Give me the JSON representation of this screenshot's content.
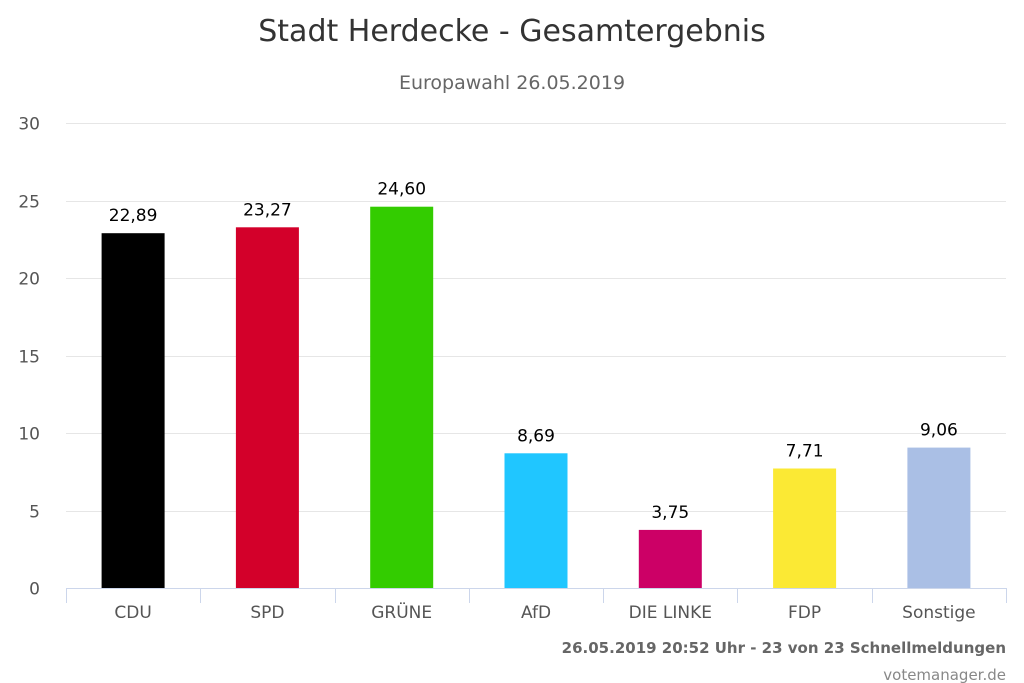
{
  "chart_data": {
    "type": "bar",
    "title": "Stadt Herdecke - Gesamtergebnis",
    "subtitle": "Europawahl 26.05.2019",
    "categories": [
      "CDU",
      "SPD",
      "GRÜNE",
      "AfD",
      "DIE LINKE",
      "FDP",
      "Sonstige"
    ],
    "values": [
      22.89,
      23.27,
      24.6,
      8.69,
      3.75,
      7.71,
      9.06
    ],
    "value_labels": [
      "22,89",
      "23,27",
      "24,60",
      "8,69",
      "3,75",
      "7,71",
      "9,06"
    ],
    "colors": [
      "#000000",
      "#d3002a",
      "#33cc00",
      "#20c6ff",
      "#cc0066",
      "#fbe934",
      "#aabfe5"
    ],
    "ylim": [
      0,
      30
    ],
    "yticks": [
      0,
      5,
      10,
      15,
      20,
      25,
      30
    ],
    "grid": true,
    "xlabel": "",
    "ylabel": ""
  },
  "footer": {
    "timestamp": "26.05.2019 20:52 Uhr - 23 von 23 Schnellmeldungen",
    "credit": "votemanager.de"
  },
  "colors": {
    "grid": "#e6e6e6",
    "axis": "#ccd6eb",
    "title": "#333333"
  }
}
